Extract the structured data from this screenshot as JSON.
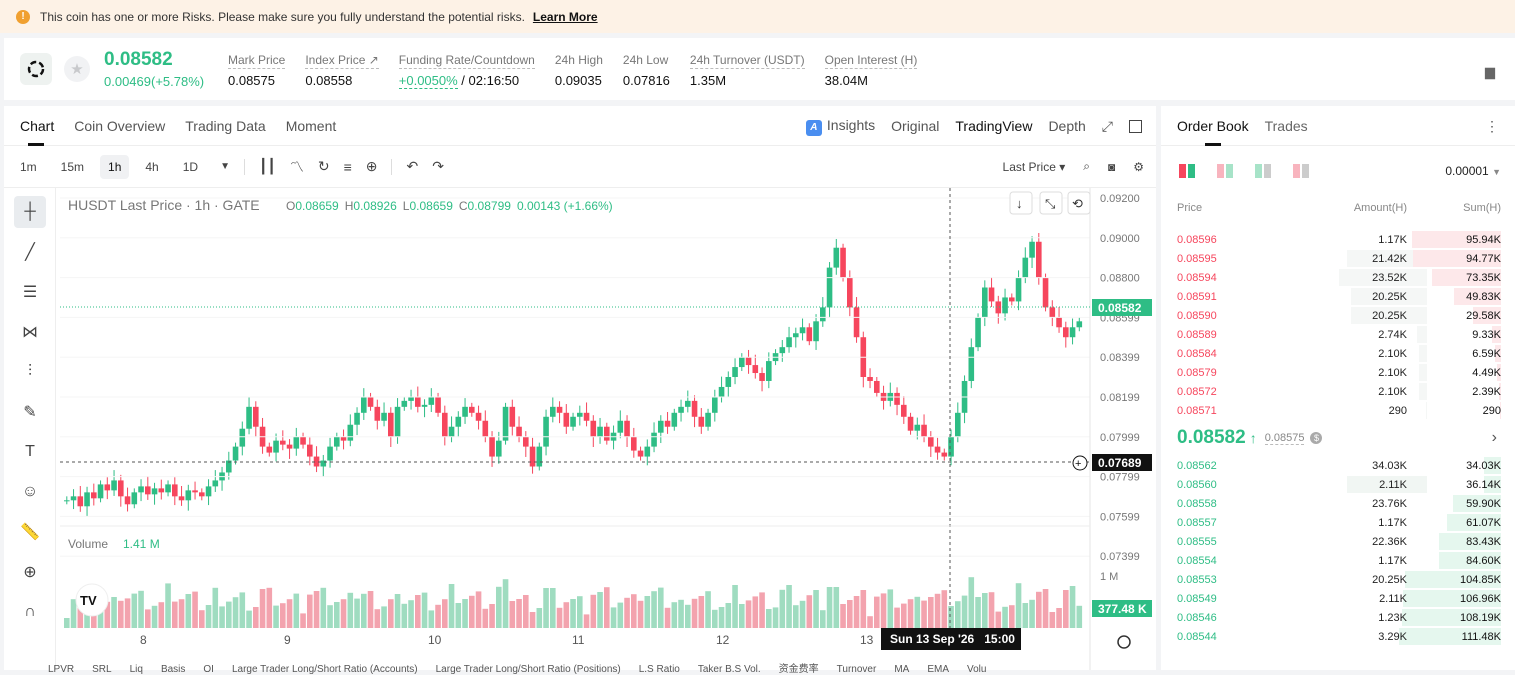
{
  "banner": {
    "text": "This coin has one or more Risks. Please make sure you fully understand the potential risks.",
    "link": "Learn More"
  },
  "ticker": {
    "last_price": "0.08582",
    "change": "0.00469(+5.78%)",
    "stats": [
      {
        "label": "Mark Price",
        "value": "0.08575"
      },
      {
        "label": "Index Price ↗",
        "value": "0.08558"
      },
      {
        "label": "Funding Rate/Countdown",
        "value": "+0.0050%",
        "value2": " / 02:16:50"
      },
      {
        "label": "24h High",
        "value": "0.09035"
      },
      {
        "label": "24h Low",
        "value": "0.07816"
      },
      {
        "label": "24h Turnover (USDT)",
        "value": "1.35M"
      },
      {
        "label": "Open Interest (H)",
        "value": "38.04M"
      }
    ]
  },
  "chart_tabs": [
    "Chart",
    "Coin Overview",
    "Trading Data",
    "Moment"
  ],
  "view_tabs": {
    "insights": "Insights",
    "original": "Original",
    "tradingview": "TradingView",
    "depth": "Depth"
  },
  "intervals": [
    "1m",
    "15m",
    "1h",
    "4h",
    "1D"
  ],
  "price_type": "Last Price",
  "legend": {
    "symbol": "HUSDT Last Price · 1h · GATE",
    "o": "0.08659",
    "h": "0.08926",
    "l": "0.08659",
    "c": "0.08799",
    "chg": "0.00143 (+1.66%)"
  },
  "volume_label": {
    "name": "Volume",
    "value": "1.41 M"
  },
  "price_badge": "0.08582",
  "cross_badge": "0.07689",
  "vol_badge": "377.48 K",
  "crosshair_date": "Sun 13 Sep '26   15:00",
  "indicators": [
    "LPVR",
    "SRL",
    "Liq",
    "Basis",
    "OI",
    "Large Trader Long/Short Ratio (Accounts)",
    "Large Trader Long/Short Ratio (Positions)",
    "L.S Ratio",
    "Taker B.S Vol.",
    "资金费率",
    "Turnover",
    "MA",
    "EMA",
    "Volu"
  ],
  "chart_data": {
    "type": "candlestick",
    "y_ticks": [
      "0.09200",
      "0.09000",
      "0.08800",
      "0.08599",
      "0.08399",
      "0.08199",
      "0.07999",
      "0.07799",
      "0.07599",
      "0.07399"
    ],
    "ylim": [
      0.073,
      0.0925
    ],
    "x_ticks": [
      "8",
      "9",
      "10",
      "11",
      "12",
      "13"
    ],
    "volume_tick": "1 M",
    "colors": {
      "up": "#2ebd85",
      "down": "#f6465d"
    }
  },
  "orderbook": {
    "tabs": [
      "Order Book",
      "Trades"
    ],
    "precision": "0.00001",
    "headers": [
      "Price",
      "Amount(H)",
      "Sum(H)"
    ],
    "asks": [
      {
        "p": "0.08596",
        "a": "1.17K",
        "s": "95.94K",
        "d": 0.04,
        "sf": 0.86
      },
      {
        "p": "0.08595",
        "a": "21.42K",
        "s": "94.77K",
        "d": 0.8,
        "sf": 0.85
      },
      {
        "p": "0.08594",
        "a": "23.52K",
        "s": "73.35K",
        "d": 0.88,
        "sf": 0.66
      },
      {
        "p": "0.08591",
        "a": "20.25K",
        "s": "49.83K",
        "d": 0.76,
        "sf": 0.45
      },
      {
        "p": "0.08590",
        "a": "20.25K",
        "s": "29.58K",
        "d": 0.76,
        "sf": 0.27
      },
      {
        "p": "0.08589",
        "a": "2.74K",
        "s": "9.33K",
        "d": 0.1,
        "sf": 0.09
      },
      {
        "p": "0.08584",
        "a": "2.10K",
        "s": "6.59K",
        "d": 0.08,
        "sf": 0.06
      },
      {
        "p": "0.08579",
        "a": "2.10K",
        "s": "4.49K",
        "d": 0.08,
        "sf": 0.04
      },
      {
        "p": "0.08572",
        "a": "2.10K",
        "s": "2.39K",
        "d": 0.08,
        "sf": 0.02
      },
      {
        "p": "0.08571",
        "a": "290",
        "s": "290",
        "d": 0.01,
        "sf": 0.01
      }
    ],
    "mid": {
      "price": "0.08582",
      "mark": "0.08575"
    },
    "bids": [
      {
        "p": "0.08562",
        "a": "34.03K",
        "s": "34.03K",
        "d": 0.0,
        "sf": 0.16
      },
      {
        "p": "0.08560",
        "a": "2.11K",
        "s": "36.14K",
        "d": 0.8,
        "sf": 0.16
      },
      {
        "p": "0.08558",
        "a": "23.76K",
        "s": "59.90K",
        "d": 0.0,
        "sf": 0.46
      },
      {
        "p": "0.08557",
        "a": "1.17K",
        "s": "61.07K",
        "d": 0.0,
        "sf": 0.52
      },
      {
        "p": "0.08555",
        "a": "22.36K",
        "s": "83.43K",
        "d": 0.0,
        "sf": 0.6
      },
      {
        "p": "0.08554",
        "a": "1.17K",
        "s": "84.60K",
        "d": 0.0,
        "sf": 0.6
      },
      {
        "p": "0.08553",
        "a": "20.25K",
        "s": "104.85K",
        "d": 0.0,
        "sf": 0.92
      },
      {
        "p": "0.08549",
        "a": "2.11K",
        "s": "106.96K",
        "d": 0.0,
        "sf": 0.94
      },
      {
        "p": "0.08546",
        "a": "1.23K",
        "s": "108.19K",
        "d": 0.0,
        "sf": 0.95
      },
      {
        "p": "0.08544",
        "a": "3.29K",
        "s": "111.48K",
        "d": 0.0,
        "sf": 0.98
      }
    ]
  }
}
